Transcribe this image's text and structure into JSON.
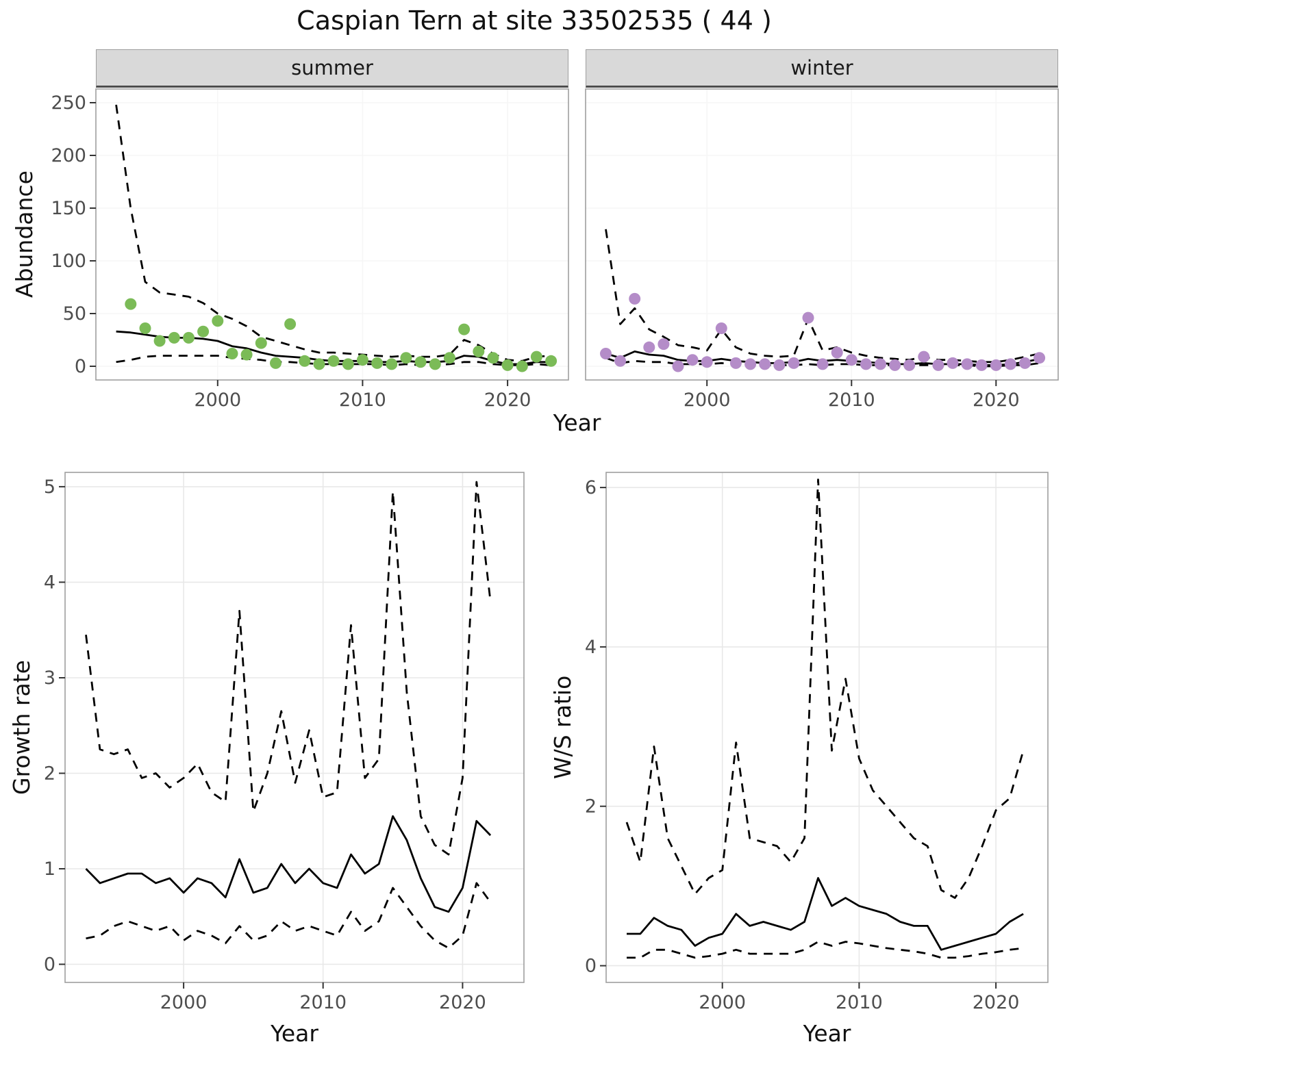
{
  "title": "Caspian Tern at site 33502535 ( 44 )",
  "chart_data": [
    {
      "id": "abundance",
      "type": "scatter",
      "facets": [
        "summer",
        "winter"
      ],
      "xlabel": "Year",
      "ylabel": "Abundance",
      "xticks": [
        2000,
        2010,
        2020
      ],
      "yticks": [
        0,
        50,
        100,
        150,
        200,
        250
      ],
      "ylim": [
        0,
        250
      ],
      "xlim": [
        1993,
        2023
      ],
      "grid": "faint",
      "legend": "none",
      "years": [
        1993,
        1994,
        1995,
        1996,
        1997,
        1998,
        1999,
        2000,
        2001,
        2002,
        2003,
        2004,
        2005,
        2006,
        2007,
        2008,
        2009,
        2010,
        2011,
        2012,
        2013,
        2014,
        2015,
        2016,
        2017,
        2018,
        2019,
        2020,
        2021,
        2022,
        2023
      ],
      "series": {
        "summer": {
          "point_color": "#7bbb57",
          "points": [
            [
              1994,
              59
            ],
            [
              1995,
              36
            ],
            [
              1996,
              24
            ],
            [
              1997,
              27
            ],
            [
              1998,
              27
            ],
            [
              1999,
              33
            ],
            [
              2000,
              43
            ],
            [
              2001,
              12
            ],
            [
              2002,
              11
            ],
            [
              2003,
              22
            ],
            [
              2004,
              3
            ],
            [
              2005,
              40
            ],
            [
              2006,
              5
            ],
            [
              2007,
              2
            ],
            [
              2008,
              5
            ],
            [
              2009,
              2
            ],
            [
              2010,
              6
            ],
            [
              2011,
              3
            ],
            [
              2012,
              2
            ],
            [
              2013,
              8
            ],
            [
              2014,
              4
            ],
            [
              2015,
              2
            ],
            [
              2016,
              8
            ],
            [
              2017,
              35
            ],
            [
              2018,
              14
            ],
            [
              2019,
              8
            ],
            [
              2020,
              1
            ],
            [
              2021,
              0
            ],
            [
              2022,
              9
            ],
            [
              2023,
              5
            ]
          ],
          "fit": [
            33,
            32,
            30,
            28,
            27,
            27,
            26,
            24,
            19,
            17,
            13,
            10,
            9,
            8,
            6,
            5,
            5,
            5,
            4,
            4,
            5,
            4,
            4,
            5,
            10,
            9,
            5,
            2,
            2,
            4,
            4
          ],
          "upper": [
            248,
            150,
            80,
            70,
            68,
            66,
            60,
            50,
            45,
            38,
            28,
            24,
            20,
            16,
            13,
            13,
            12,
            11,
            10,
            9,
            10,
            9,
            9,
            11,
            25,
            20,
            12,
            6,
            5,
            9,
            10
          ],
          "lower": [
            4,
            6,
            9,
            10,
            10,
            10,
            10,
            10,
            8,
            7,
            6,
            4,
            4,
            3,
            2,
            2,
            2,
            2,
            2,
            1,
            2,
            1,
            1,
            2,
            4,
            4,
            2,
            1,
            1,
            2,
            1
          ]
        },
        "winter": {
          "point_color": "#b48cc8",
          "points": [
            [
              1993,
              12
            ],
            [
              1994,
              5
            ],
            [
              1995,
              64
            ],
            [
              1996,
              18
            ],
            [
              1997,
              21
            ],
            [
              1998,
              0
            ],
            [
              1999,
              6
            ],
            [
              2000,
              4
            ],
            [
              2001,
              36
            ],
            [
              2002,
              3
            ],
            [
              2003,
              2
            ],
            [
              2004,
              2
            ],
            [
              2005,
              1
            ],
            [
              2006,
              3
            ],
            [
              2007,
              46
            ],
            [
              2008,
              2
            ],
            [
              2009,
              13
            ],
            [
              2010,
              6
            ],
            [
              2011,
              2
            ],
            [
              2012,
              2
            ],
            [
              2013,
              1
            ],
            [
              2014,
              1
            ],
            [
              2015,
              9
            ],
            [
              2016,
              1
            ],
            [
              2017,
              3
            ],
            [
              2018,
              2
            ],
            [
              2019,
              1
            ],
            [
              2020,
              1
            ],
            [
              2021,
              2
            ],
            [
              2022,
              3
            ],
            [
              2023,
              8
            ]
          ],
          "fit": [
            12,
            8,
            14,
            11,
            10,
            6,
            5,
            5,
            7,
            5,
            4,
            3,
            3,
            4,
            7,
            5,
            6,
            5,
            4,
            3,
            2,
            2,
            3,
            2,
            2,
            2,
            1,
            1,
            2,
            4,
            7
          ],
          "upper": [
            130,
            40,
            55,
            35,
            28,
            20,
            18,
            15,
            35,
            18,
            12,
            10,
            9,
            10,
            45,
            15,
            18,
            13,
            10,
            8,
            7,
            6,
            9,
            6,
            6,
            5,
            4,
            4,
            6,
            9,
            12
          ],
          "lower": [
            8,
            3,
            5,
            4,
            4,
            2,
            2,
            2,
            3,
            2,
            1,
            1,
            1,
            1,
            2,
            1,
            2,
            2,
            1,
            1,
            1,
            1,
            1,
            1,
            1,
            1,
            0,
            0,
            1,
            1,
            3
          ]
        }
      },
      "line_styles": {
        "fit": "solid black",
        "upper": "dashed black",
        "lower": "dashed black"
      }
    },
    {
      "id": "growth_rate",
      "type": "line",
      "xlabel": "Year",
      "ylabel": "Growth rate",
      "xticks": [
        2000,
        2010,
        2020
      ],
      "yticks": [
        0,
        1,
        2,
        3,
        4,
        5
      ],
      "ylim": [
        0,
        5
      ],
      "xlim": [
        1993,
        2022
      ],
      "grid": "on",
      "legend": "none",
      "years": [
        1993,
        1994,
        1995,
        1996,
        1997,
        1998,
        1999,
        2000,
        2001,
        2002,
        2003,
        2004,
        2005,
        2006,
        2007,
        2008,
        2009,
        2010,
        2011,
        2012,
        2013,
        2014,
        2015,
        2016,
        2017,
        2018,
        2019,
        2020,
        2021,
        2022
      ],
      "fit": [
        1.0,
        0.85,
        0.9,
        0.95,
        0.95,
        0.85,
        0.9,
        0.75,
        0.9,
        0.85,
        0.7,
        1.1,
        0.75,
        0.8,
        1.05,
        0.85,
        1.0,
        0.85,
        0.8,
        1.15,
        0.95,
        1.05,
        1.55,
        1.3,
        0.9,
        0.6,
        0.55,
        0.8,
        1.5,
        1.35
      ],
      "upper": [
        3.45,
        2.25,
        2.2,
        2.25,
        1.95,
        2.0,
        1.85,
        1.95,
        2.1,
        1.8,
        1.7,
        3.7,
        1.6,
        2.0,
        2.65,
        1.9,
        2.45,
        1.75,
        1.8,
        3.55,
        1.95,
        2.15,
        4.95,
        2.85,
        1.55,
        1.25,
        1.15,
        1.95,
        5.05,
        3.8
      ],
      "lower": [
        0.27,
        0.3,
        0.4,
        0.45,
        0.4,
        0.35,
        0.4,
        0.25,
        0.35,
        0.3,
        0.22,
        0.4,
        0.25,
        0.3,
        0.45,
        0.35,
        0.4,
        0.35,
        0.3,
        0.55,
        0.35,
        0.45,
        0.8,
        0.6,
        0.4,
        0.25,
        0.17,
        0.3,
        0.85,
        0.65
      ],
      "line_styles": {
        "fit": "solid black",
        "upper": "dashed black",
        "lower": "dashed black"
      }
    },
    {
      "id": "ws_ratio",
      "type": "line",
      "xlabel": "Year",
      "ylabel": "W/S ratio",
      "xticks": [
        2000,
        2010,
        2020
      ],
      "yticks": [
        0,
        2,
        4,
        6
      ],
      "ylim": [
        0,
        6
      ],
      "xlim": [
        1993,
        2022
      ],
      "grid": "on",
      "legend": "none",
      "years": [
        1993,
        1994,
        1995,
        1996,
        1997,
        1998,
        1999,
        2000,
        2001,
        2002,
        2003,
        2004,
        2005,
        2006,
        2007,
        2008,
        2009,
        2010,
        2011,
        2012,
        2013,
        2014,
        2015,
        2016,
        2017,
        2018,
        2019,
        2020,
        2021,
        2022
      ],
      "fit": [
        0.4,
        0.4,
        0.6,
        0.5,
        0.45,
        0.25,
        0.35,
        0.4,
        0.65,
        0.5,
        0.55,
        0.5,
        0.45,
        0.55,
        1.1,
        0.75,
        0.85,
        0.75,
        0.7,
        0.65,
        0.55,
        0.5,
        0.5,
        0.2,
        0.25,
        0.3,
        0.35,
        0.4,
        0.55,
        0.65
      ],
      "upper": [
        1.8,
        1.3,
        2.75,
        1.6,
        1.25,
        0.9,
        1.1,
        1.2,
        2.8,
        1.6,
        1.55,
        1.5,
        1.3,
        1.6,
        6.1,
        2.7,
        3.6,
        2.6,
        2.2,
        2.0,
        1.8,
        1.6,
        1.5,
        0.95,
        0.85,
        1.1,
        1.5,
        1.95,
        2.1,
        2.7
      ],
      "lower": [
        0.1,
        0.1,
        0.2,
        0.2,
        0.15,
        0.1,
        0.12,
        0.15,
        0.2,
        0.15,
        0.15,
        0.15,
        0.15,
        0.2,
        0.3,
        0.25,
        0.3,
        0.28,
        0.25,
        0.22,
        0.2,
        0.18,
        0.15,
        0.1,
        0.1,
        0.12,
        0.15,
        0.17,
        0.2,
        0.22
      ],
      "line_styles": {
        "fit": "solid black",
        "upper": "dashed black",
        "lower": "dashed black"
      }
    }
  ]
}
